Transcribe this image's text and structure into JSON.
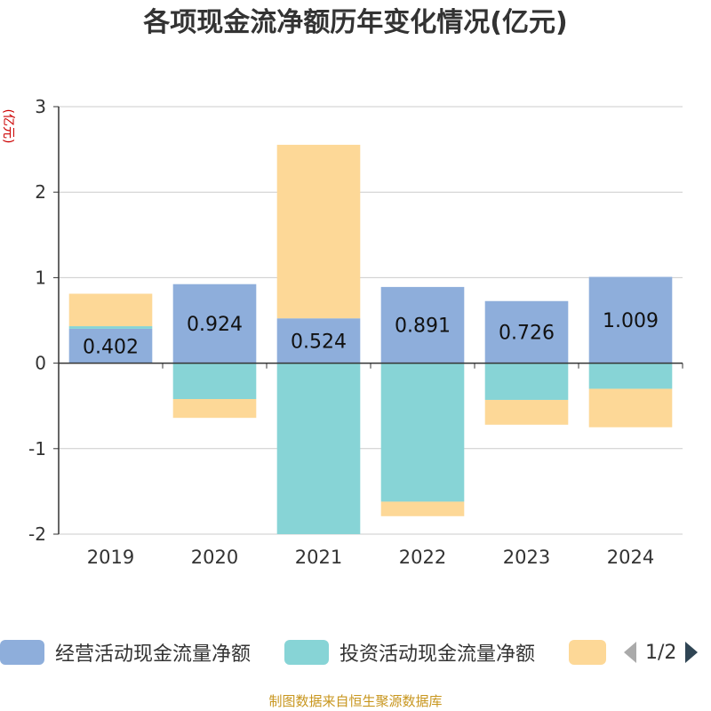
{
  "title": "各项现金流净额历年变化情况(亿元)",
  "unit_label": "(亿元)",
  "source": "制图数据来自恒生聚源数据库",
  "pager": {
    "text": "1/2",
    "prev_icon": "triangle-left-icon",
    "next_icon": "triangle-right-icon"
  },
  "colors": {
    "operating": "#8eaedb",
    "investing": "#87d4d6",
    "third": "#fdd897",
    "axis": "#333333",
    "grid": "#cccccc"
  },
  "chart_data": {
    "type": "bar",
    "stacked": true,
    "categories": [
      "2019",
      "2020",
      "2021",
      "2022",
      "2023",
      "2024"
    ],
    "ylim": [
      -2,
      3
    ],
    "yticks": [
      -2,
      -1,
      0,
      1,
      2,
      3
    ],
    "grid": true,
    "legend_position": "bottom",
    "series": [
      {
        "name": "经营活动现金流量净额",
        "values": [
          0.402,
          0.924,
          0.524,
          0.891,
          0.726,
          1.009
        ],
        "labels": [
          "0.402",
          "0.924",
          "0.524",
          "0.891",
          "0.726",
          "1.009"
        ]
      },
      {
        "name": "投资活动现金流量净额",
        "values": [
          0.03,
          -0.42,
          -2.0,
          -1.62,
          -0.43,
          -0.3
        ]
      },
      {
        "name": "",
        "values": [
          0.38,
          -0.22,
          2.03,
          -0.17,
          -0.29,
          -0.45
        ]
      }
    ]
  }
}
